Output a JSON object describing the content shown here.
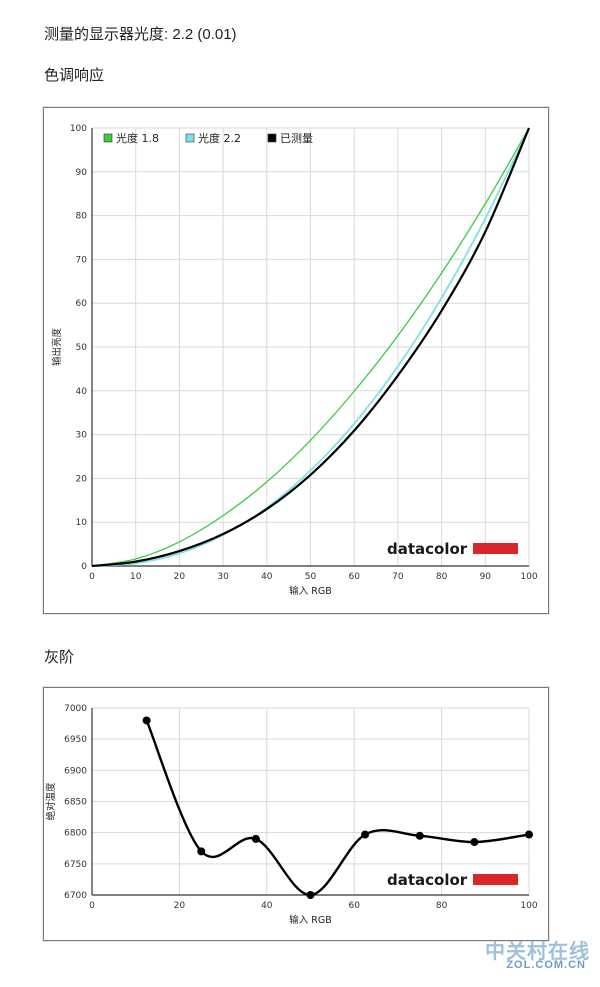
{
  "page": {
    "measured_gamma": "测量的显示器光度: 2.2 (0.01)",
    "gamma_section_title": "色调响应",
    "gray_section_title": "灰阶"
  },
  "colors": {
    "gamma18": "#3dcc3d",
    "gamma22": "#7fe0e8",
    "measured": "#000000",
    "brand_bar": "#d9262b",
    "grid": "#d9d9d9"
  },
  "chart_data": [
    {
      "type": "line",
      "xlabel": "输入 RGB",
      "ylabel": "输出亮度",
      "xlim": [
        0,
        100
      ],
      "ylim": [
        0,
        100
      ],
      "xticks": [
        "0",
        "10",
        "20",
        "30",
        "40",
        "50",
        "60",
        "70",
        "80",
        "90",
        "100"
      ],
      "yticks": [
        "0",
        "10",
        "20",
        "30",
        "40",
        "50",
        "60",
        "70",
        "80",
        "90",
        "100"
      ],
      "grid": true,
      "legend_position": "top-left",
      "series": [
        {
          "name": "光度 1.8",
          "color": "#3dcc3d",
          "x": [
            0,
            10,
            20,
            30,
            40,
            50,
            60,
            70,
            80,
            90,
            100
          ],
          "y": [
            0,
            1.6,
            5.5,
            11.5,
            19.2,
            28.7,
            39.9,
            52.6,
            66.9,
            82.7,
            100
          ]
        },
        {
          "name": "光度 2.2",
          "color": "#7fe0e8",
          "x": [
            0,
            10,
            20,
            30,
            40,
            50,
            60,
            70,
            80,
            90,
            100
          ],
          "y": [
            0,
            0.6,
            2.9,
            7.1,
            13.3,
            21.8,
            32.5,
            45.6,
            61.2,
            79.3,
            100
          ]
        },
        {
          "name": "已测量",
          "color": "#000000",
          "x": [
            0,
            10,
            20,
            30,
            40,
            50,
            60,
            70,
            80,
            90,
            100
          ],
          "y": [
            0,
            1.0,
            3.4,
            7.3,
            13.0,
            20.8,
            30.9,
            43.5,
            58.3,
            76.3,
            100
          ]
        }
      ],
      "brand": "datacolor"
    },
    {
      "type": "line",
      "xlabel": "输入 RGB",
      "ylabel": "绝对温度",
      "xlim": [
        0,
        100
      ],
      "ylim": [
        6700,
        7000
      ],
      "xticks": [
        "0",
        "20",
        "40",
        "60",
        "80",
        "100"
      ],
      "yticks": [
        "6700",
        "6750",
        "6800",
        "6850",
        "6900",
        "6950",
        "7000"
      ],
      "grid": true,
      "series": [
        {
          "color": "#000000",
          "x": [
            12.5,
            25,
            37.5,
            50,
            62.5,
            75,
            87.5,
            100
          ],
          "y": [
            6980,
            6770,
            6790,
            6700,
            6797,
            6795,
            6785,
            6797
          ]
        }
      ],
      "brand": "datacolor"
    }
  ],
  "watermark": {
    "text": "中关村在线",
    "site": "ZOL.COM.CN"
  }
}
